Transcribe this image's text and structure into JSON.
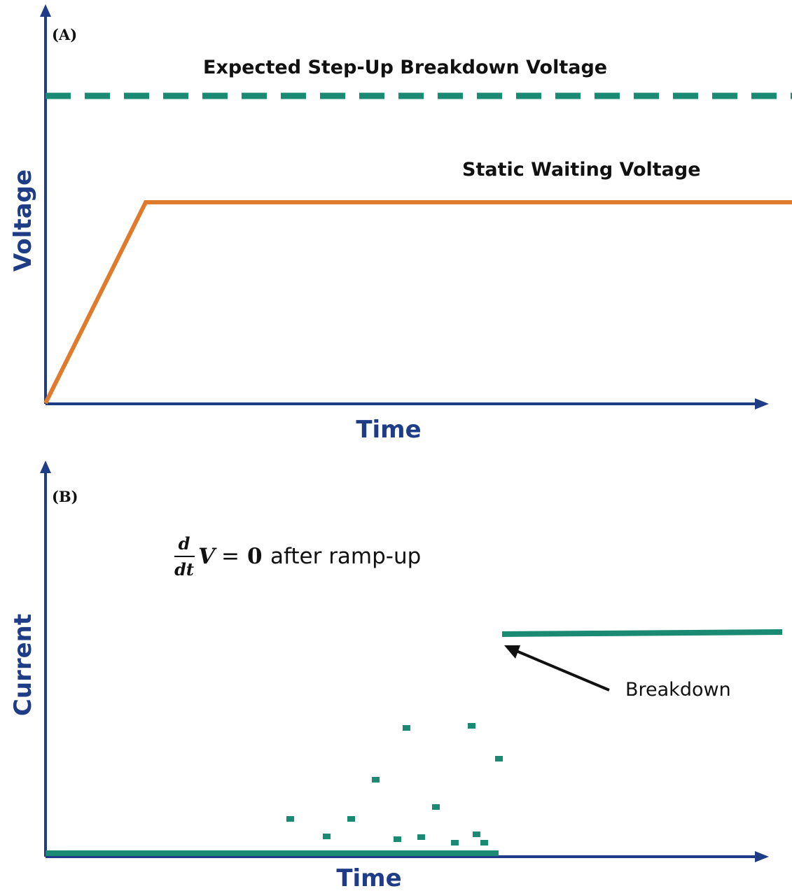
{
  "colors": {
    "axis": "#1f3d87",
    "breakdown_level": "#1a8a72",
    "voltage": "#e07b2e",
    "current": "#1a8a72",
    "text": "#111111"
  },
  "panel_a": {
    "label": "(A)",
    "y_axis_label": "Voltage",
    "x_axis_label": "Time",
    "breakdown_label": "Expected Step-Up Breakdown Voltage",
    "static_label": "Static Waiting Voltage"
  },
  "panel_b": {
    "label": "(B)",
    "y_axis_label": "Current",
    "x_axis_label": "Time",
    "equation": {
      "numerator": "d",
      "denominator": "dt",
      "variable": "V",
      "equals": "=",
      "zero": "0",
      "suffix": "after ramp-up"
    },
    "breakdown_label": "Breakdown"
  },
  "icons": {
    "y_arrow": "arrow-up-icon",
    "x_arrow": "arrow-right-icon",
    "pointer": "arrow-pointer-icon"
  }
}
